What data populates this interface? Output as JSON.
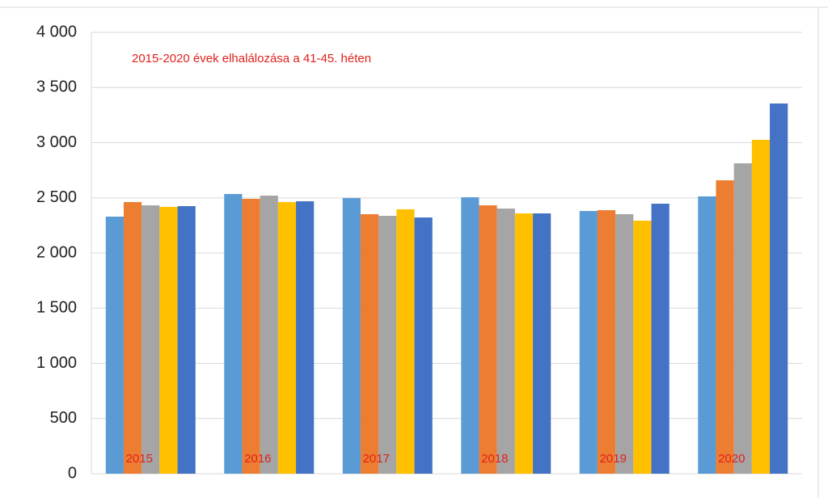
{
  "chart_data": {
    "type": "bar",
    "title": "2015-2020 évek elhalálozása a 41-45. héten",
    "categories": [
      "2015",
      "2016",
      "2017",
      "2018",
      "2019",
      "2020"
    ],
    "series": [
      {
        "color": "#5b9bd5",
        "values": [
          2330,
          2535,
          2498,
          2505,
          2381,
          2513
        ]
      },
      {
        "color": "#ed7d31",
        "values": [
          2462,
          2491,
          2352,
          2432,
          2388,
          2659
        ]
      },
      {
        "color": "#a5a5a5",
        "values": [
          2432,
          2520,
          2337,
          2403,
          2352,
          2813
        ]
      },
      {
        "color": "#ffc000",
        "values": [
          2418,
          2462,
          2396,
          2359,
          2293,
          3026
        ]
      },
      {
        "color": "#4472c4",
        "values": [
          2425,
          2469,
          2322,
          2359,
          2447,
          3355
        ]
      }
    ],
    "ylim": [
      0,
      4000
    ],
    "yticks": [
      0,
      500,
      {
        "value": 1000,
        "label": "1 000"
      },
      {
        "value": 1500,
        "label": "1 500"
      },
      {
        "value": 2000,
        "label": "2 000"
      },
      {
        "value": 2500,
        "label": "2 500"
      },
      {
        "value": 3000,
        "label": "3 000"
      },
      {
        "value": 3500,
        "label": "3 500"
      },
      {
        "value": 4000,
        "label": "4 000"
      }
    ],
    "grid": true
  }
}
